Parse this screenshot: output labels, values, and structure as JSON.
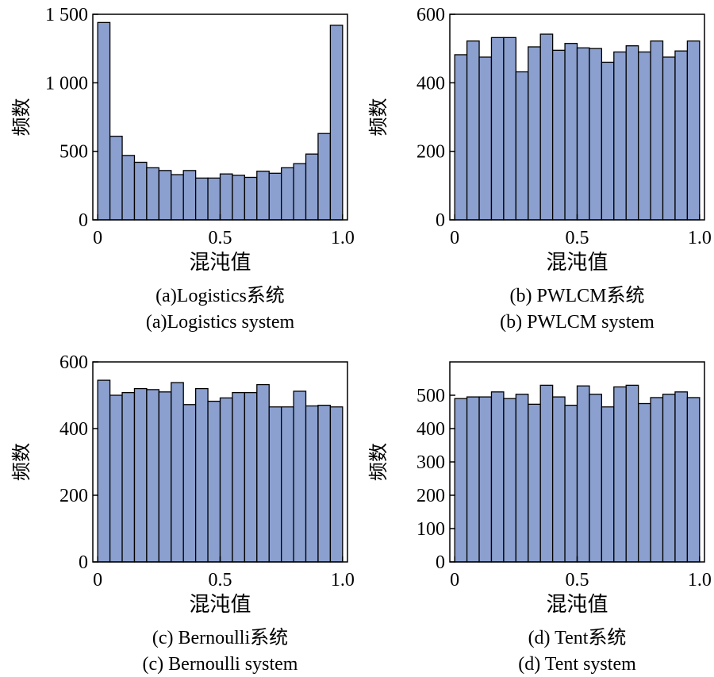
{
  "chart_data": [
    {
      "type": "bar",
      "name": "logistics",
      "ylabel": "频数",
      "xlabel": "混沌值",
      "caption_cn": "(a)Logistics系统",
      "caption_en": "(a)Logistics system",
      "xlim": [
        -0.02,
        1.02
      ],
      "ylim": [
        0,
        1500
      ],
      "xticks": [
        0,
        0.5,
        1.0
      ],
      "xtick_labels": [
        "0",
        "0.5",
        "1.0"
      ],
      "yticks": [
        0,
        500,
        1000,
        1500
      ],
      "ytick_labels": [
        "0",
        "500",
        "1 000",
        "1 500"
      ],
      "bin_width": 0.05,
      "bin_starts": [
        0,
        0.05,
        0.1,
        0.15,
        0.2,
        0.25,
        0.3,
        0.35,
        0.4,
        0.45,
        0.5,
        0.55,
        0.6,
        0.65,
        0.7,
        0.75,
        0.8,
        0.85,
        0.9,
        0.95
      ],
      "values": [
        1440,
        610,
        470,
        420,
        380,
        360,
        330,
        360,
        305,
        305,
        335,
        325,
        310,
        355,
        340,
        380,
        410,
        480,
        630,
        1420
      ]
    },
    {
      "type": "bar",
      "name": "pwlcm",
      "ylabel": "频数",
      "xlabel": "混沌值",
      "caption_cn": "(b) PWLCM系统",
      "caption_en": "(b) PWLCM system",
      "xlim": [
        -0.02,
        1.02
      ],
      "ylim": [
        0,
        600
      ],
      "xticks": [
        0,
        0.5,
        1.0
      ],
      "xtick_labels": [
        "0",
        "0.5",
        "1.0"
      ],
      "yticks": [
        0,
        200,
        400,
        600
      ],
      "ytick_labels": [
        "0",
        "200",
        "400",
        "600"
      ],
      "bin_width": 0.05,
      "bin_starts": [
        0,
        0.05,
        0.1,
        0.15,
        0.2,
        0.25,
        0.3,
        0.35,
        0.4,
        0.45,
        0.5,
        0.55,
        0.6,
        0.65,
        0.7,
        0.75,
        0.8,
        0.85,
        0.9,
        0.95
      ],
      "values": [
        482,
        522,
        475,
        532,
        532,
        432,
        505,
        542,
        495,
        515,
        502,
        500,
        460,
        490,
        508,
        490,
        522,
        475,
        493,
        522
      ]
    },
    {
      "type": "bar",
      "name": "bernoulli",
      "ylabel": "频数",
      "xlabel": "混沌值",
      "caption_cn": "(c) Bernoulli系统",
      "caption_en": "(c) Bernoulli system",
      "xlim": [
        -0.02,
        1.02
      ],
      "ylim": [
        0,
        600
      ],
      "xticks": [
        0,
        0.5,
        1.0
      ],
      "xtick_labels": [
        "0",
        "0.5",
        "1.0"
      ],
      "yticks": [
        0,
        200,
        400,
        600
      ],
      "ytick_labels": [
        "0",
        "200",
        "400",
        "600"
      ],
      "bin_width": 0.05,
      "bin_starts": [
        0,
        0.05,
        0.1,
        0.15,
        0.2,
        0.25,
        0.3,
        0.35,
        0.4,
        0.45,
        0.5,
        0.55,
        0.6,
        0.65,
        0.7,
        0.75,
        0.8,
        0.85,
        0.9,
        0.95
      ],
      "values": [
        545,
        500,
        508,
        520,
        517,
        510,
        538,
        472,
        520,
        482,
        492,
        508,
        508,
        532,
        465,
        465,
        512,
        468,
        470,
        465
      ]
    },
    {
      "type": "bar",
      "name": "tent",
      "ylabel": "频数",
      "xlabel": "混沌值",
      "caption_cn": "(d) Tent系统",
      "caption_en": "(d) Tent system",
      "xlim": [
        -0.02,
        1.02
      ],
      "ylim": [
        0,
        600
      ],
      "xticks": [
        0,
        0.5,
        1.0
      ],
      "xtick_labels": [
        "0",
        "0.5",
        "1.0"
      ],
      "yticks": [
        0,
        100,
        200,
        300,
        400,
        500
      ],
      "ytick_labels": [
        "0",
        "100",
        "200",
        "300",
        "400",
        "500"
      ],
      "bin_width": 0.05,
      "bin_starts": [
        0,
        0.05,
        0.1,
        0.15,
        0.2,
        0.25,
        0.3,
        0.35,
        0.4,
        0.45,
        0.5,
        0.55,
        0.6,
        0.65,
        0.7,
        0.75,
        0.8,
        0.85,
        0.9,
        0.95
      ],
      "values": [
        490,
        495,
        495,
        510,
        490,
        503,
        473,
        530,
        495,
        470,
        528,
        503,
        465,
        525,
        530,
        475,
        493,
        503,
        510,
        493
      ]
    }
  ]
}
